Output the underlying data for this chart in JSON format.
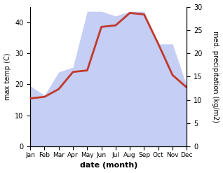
{
  "months": [
    "Jan",
    "Feb",
    "Mar",
    "Apr",
    "May",
    "Jun",
    "Jul",
    "Aug",
    "Sep",
    "Oct",
    "Nov",
    "Dec"
  ],
  "temperature": [
    15.5,
    16.0,
    18.5,
    24.0,
    24.5,
    38.5,
    39.0,
    43.0,
    42.5,
    33.0,
    23.0,
    19.0
  ],
  "precipitation": [
    13,
    11,
    16,
    17,
    29,
    29,
    28,
    29,
    29,
    22,
    22,
    13
  ],
  "temp_color": "#c0392b",
  "precip_fill_color": "#c5cef5",
  "xlabel": "date (month)",
  "ylabel_left": "max temp (C)",
  "ylabel_right": "med. precipitation (kg/m2)",
  "ylim_left": [
    0,
    45
  ],
  "ylim_right": [
    0,
    30
  ],
  "yticks_left": [
    0,
    10,
    20,
    30,
    40
  ],
  "yticks_right": [
    0,
    5,
    10,
    15,
    20,
    25,
    30
  ],
  "background_color": "#ffffff",
  "temp_linewidth": 2.0,
  "xlabel_fontsize": 8,
  "ylabel_fontsize": 7,
  "tick_fontsize": 7,
  "month_fontsize": 6.5
}
